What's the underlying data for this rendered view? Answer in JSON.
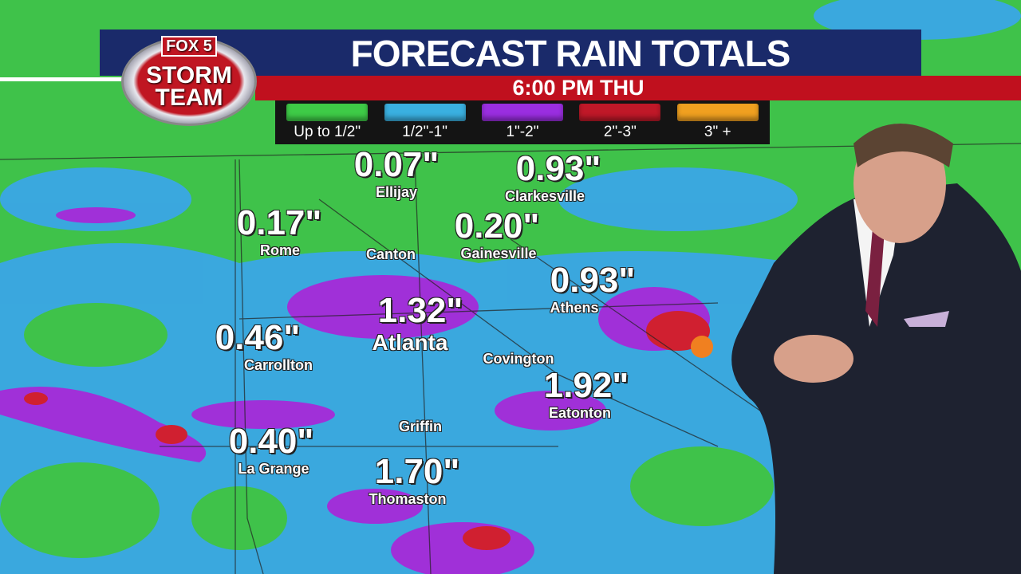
{
  "header": {
    "logo_top": "FOX 5",
    "logo_bottom": "STORM TEAM",
    "title": "FORECAST RAIN TOTALS",
    "time": "6:00 PM  THU"
  },
  "legend": [
    {
      "label": "Up to 1/2\"",
      "color": "#3ecb47"
    },
    {
      "label": "1/2\"-1\"",
      "color": "#3ab0e0"
    },
    {
      "label": "1\"-2\"",
      "color": "#9a2ee0"
    },
    {
      "label": "2\"-3\"",
      "color": "#c01828"
    },
    {
      "label": "3\" +",
      "color": "#f0a020"
    }
  ],
  "colors": {
    "map_green": "#3fc24a",
    "map_blue": "#3aa6e6",
    "map_purple": "#a030d8",
    "map_red": "#d02030",
    "header_blue": "#1a2a6a",
    "header_red": "#c0101e"
  },
  "locations": [
    {
      "value": "0.07\"",
      "city": "Ellijay"
    },
    {
      "value": "0.93\"",
      "city": "Clarkesville"
    },
    {
      "value": "0.17\"",
      "city": "Rome"
    },
    {
      "value": "",
      "city": "Canton"
    },
    {
      "value": "0.20\"",
      "city": "Gainesville"
    },
    {
      "value": "0.93\"",
      "city": "Athens"
    },
    {
      "value": "1.32\"",
      "city": "Atlanta"
    },
    {
      "value": "0.46\"",
      "city": "Carrollton"
    },
    {
      "value": "",
      "city": "Covington"
    },
    {
      "value": "1.92\"",
      "city": "Eatonton"
    },
    {
      "value": "",
      "city": "Griffin"
    },
    {
      "value": "0.40\"",
      "city": "La Grange"
    },
    {
      "value": "1.70\"",
      "city": "Thomaston"
    }
  ]
}
